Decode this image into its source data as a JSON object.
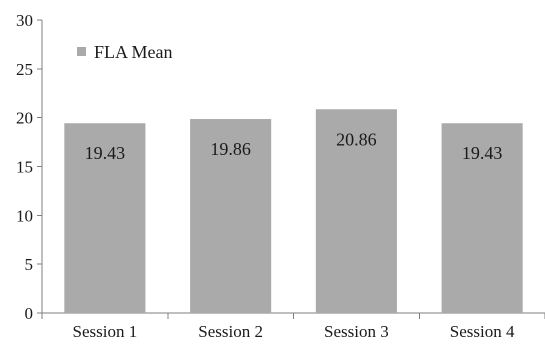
{
  "chart_data": {
    "type": "bar",
    "title": "",
    "xlabel": "",
    "ylabel": "",
    "categories": [
      "Session 1",
      "Session 2",
      "Session 3",
      "Session 4"
    ],
    "series": [
      {
        "name": "FLA Mean",
        "values": [
          19.43,
          19.86,
          20.86,
          19.43
        ],
        "color": "#aaaaaa"
      }
    ],
    "data_labels": [
      "19.43",
      "19.86",
      "20.86",
      "19.43"
    ],
    "ylim": [
      0,
      30
    ],
    "y_ticks": [
      0,
      5,
      10,
      15,
      20,
      25,
      30
    ],
    "grid": false,
    "legend_position": "top-left",
    "axis_color": "#7f7f7f"
  }
}
